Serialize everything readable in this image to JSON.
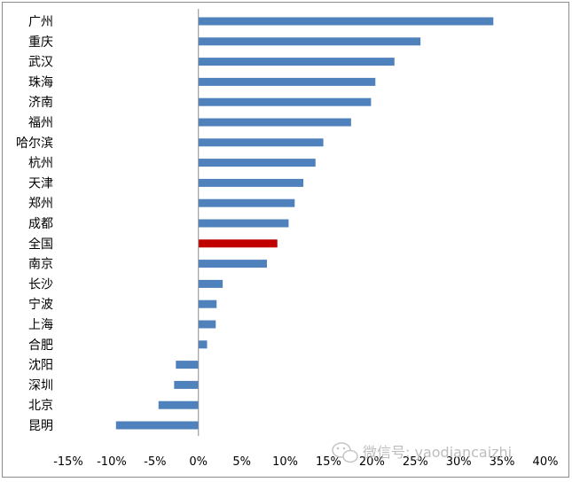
{
  "chart_data": {
    "type": "bar",
    "orientation": "horizontal",
    "categories": [
      "广州",
      "重庆",
      "武汉",
      "珠海",
      "济南",
      "福州",
      "哈尔滨",
      "杭州",
      "天津",
      "郑州",
      "成都",
      "全国",
      "南京",
      "长沙",
      "宁波",
      "上海",
      "合肥",
      "沈阳",
      "深圳",
      "北京",
      "昆明"
    ],
    "values": [
      34.0,
      25.6,
      22.6,
      20.4,
      19.9,
      17.6,
      14.4,
      13.5,
      12.1,
      11.1,
      10.4,
      9.1,
      7.9,
      2.8,
      2.1,
      2.0,
      1.0,
      -2.6,
      -2.8,
      -4.6,
      -9.5
    ],
    "highlight_category": "全国",
    "colors": {
      "default": "#4f81bd",
      "highlight": "#c00000"
    },
    "xlim": [
      -15,
      40
    ],
    "xticks": [
      "-15%",
      "-10%",
      "-5%",
      "0%",
      "5%",
      "10%",
      "15%",
      "20%",
      "25%",
      "30%",
      "35%",
      "40%"
    ],
    "grid": false,
    "title": "",
    "xlabel": "",
    "ylabel": ""
  },
  "watermark": {
    "icon": "wechat-icon",
    "text": "微信号: yaodiancaizhi"
  }
}
